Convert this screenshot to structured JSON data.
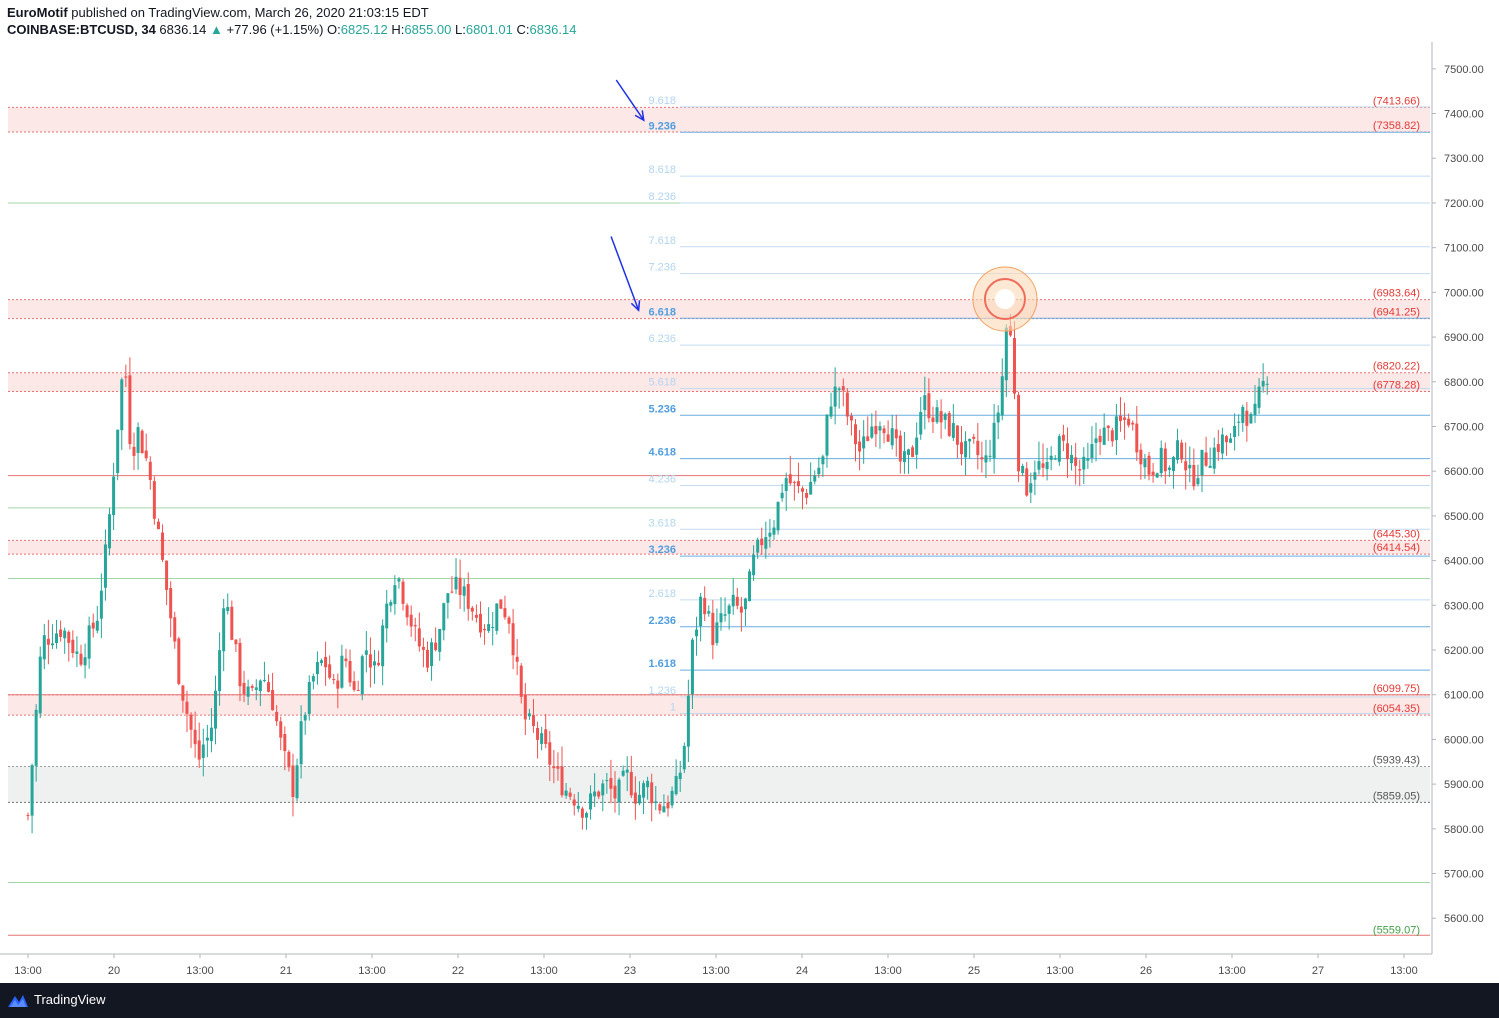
{
  "header": {
    "author": "EuroMotif",
    "published_text": " published on TradingView.com, March 26, 2020 21:03:15 EDT",
    "symbol": "COINBASE:BTCUSD, 34",
    "last": "6836.14",
    "change": "+77.96 (+1.15%)",
    "o_label": "O:",
    "o": "6825.12",
    "h_label": "H:",
    "h": "6855.00",
    "l_label": "L:",
    "l": "6801.01",
    "c_label": "C:",
    "c": "6836.14"
  },
  "footer": {
    "brand": "TradingView"
  },
  "colors": {
    "up": "#26a69a",
    "down": "#ef5350",
    "fib_light": "#b3d4f0",
    "fib_bold": "#4f9ee0",
    "red_line": "#e57373",
    "green_line": "#a5d6a7",
    "zone_red": "#fde8e8",
    "zone_gray": "#eef1f0",
    "arrow": "#1e32e6",
    "circle": "#f5a25d"
  },
  "chart_data": {
    "type": "candlestick",
    "symbol": "COINBASE:BTCUSD",
    "ylim": [
      5520,
      7560
    ],
    "y_ticks": [
      7500,
      7400,
      7300,
      7200,
      7100,
      7000,
      6900,
      6800,
      6700,
      6600,
      6500,
      6400,
      6300,
      6200,
      6100,
      6000,
      5900,
      5800,
      5700,
      5600
    ],
    "x_ticks": [
      {
        "label": "13:00",
        "pos": 0.0
      },
      {
        "label": "20",
        "pos": 0.5
      },
      {
        "label": "13:00",
        "pos": 1.0
      },
      {
        "label": "21",
        "pos": 1.5
      },
      {
        "label": "13:00",
        "pos": 2.0
      },
      {
        "label": "22",
        "pos": 2.5
      },
      {
        "label": "13:00",
        "pos": 3.0
      },
      {
        "label": "23",
        "pos": 3.5
      },
      {
        "label": "13:00",
        "pos": 4.0
      },
      {
        "label": "24",
        "pos": 4.5
      },
      {
        "label": "13:00",
        "pos": 5.0
      },
      {
        "label": "25",
        "pos": 5.5
      },
      {
        "label": "13:00",
        "pos": 6.0
      },
      {
        "label": "26",
        "pos": 6.5
      },
      {
        "label": "13:00",
        "pos": 7.0
      },
      {
        "label": "27",
        "pos": 7.5
      },
      {
        "label": "13:00",
        "pos": 8.0
      }
    ],
    "fib_levels": [
      {
        "label": "9.618",
        "value": 7415,
        "style": "light"
      },
      {
        "label": "9.236",
        "value": 7358,
        "style": "bold"
      },
      {
        "label": "8.618",
        "value": 7260,
        "style": "light"
      },
      {
        "label": "8.236",
        "value": 7200,
        "style": "light"
      },
      {
        "label": "7.618",
        "value": 7102,
        "style": "light"
      },
      {
        "label": "7.236",
        "value": 7042,
        "style": "light"
      },
      {
        "label": "6.618",
        "value": 6942,
        "style": "bold"
      },
      {
        "label": "6.236",
        "value": 6882,
        "style": "light"
      },
      {
        "label": "5.618",
        "value": 6785,
        "style": "light"
      },
      {
        "label": "5.236",
        "value": 6725,
        "style": "bold"
      },
      {
        "label": "4.618",
        "value": 6628,
        "style": "bold"
      },
      {
        "label": "4.236",
        "value": 6568,
        "style": "light"
      },
      {
        "label": "3.618",
        "value": 6470,
        "style": "light"
      },
      {
        "label": "3.236",
        "value": 6410,
        "style": "bold"
      },
      {
        "label": "2.618",
        "value": 6312,
        "style": "light"
      },
      {
        "label": "2.236",
        "value": 6252,
        "style": "bold"
      },
      {
        "label": "1.618",
        "value": 6155,
        "style": "bold"
      },
      {
        "label": "1.236",
        "value": 6095,
        "style": "light"
      },
      {
        "label": "1",
        "value": 6058,
        "style": "light"
      }
    ],
    "zones": [
      {
        "top": 7413.66,
        "bottom": 7358.82,
        "top_label": "(7413.66)",
        "bottom_label": "(7358.82)",
        "color": "red"
      },
      {
        "top": 6983.64,
        "bottom": 6941.25,
        "top_label": "(6983.64)",
        "bottom_label": "(6941.25)",
        "color": "red"
      },
      {
        "top": 6820.22,
        "bottom": 6778.28,
        "top_label": "(6820.22)",
        "bottom_label": "(6778.28)",
        "color": "red"
      },
      {
        "top": 6445.3,
        "bottom": 6414.54,
        "top_label": "(6445.30)",
        "bottom_label": "(6414.54)",
        "color": "red"
      },
      {
        "top": 6099.75,
        "bottom": 6054.35,
        "top_label": "(6099.75)",
        "bottom_label": "(6054.35)",
        "color": "red"
      },
      {
        "top": 5939.43,
        "bottom": 5859.05,
        "top_label": "(5939.43)",
        "bottom_label": "(5859.05)",
        "color": "gray"
      }
    ],
    "support_labels": [
      {
        "label": "(5559.07)",
        "value": 5559.07
      }
    ],
    "extra_lines": [
      {
        "value": 7200,
        "color": "green"
      },
      {
        "value": 6590,
        "color": "red"
      },
      {
        "value": 6518,
        "color": "green"
      },
      {
        "value": 6360,
        "color": "green"
      },
      {
        "value": 6100,
        "color": "red"
      },
      {
        "value": 5680,
        "color": "green"
      },
      {
        "value": 5562,
        "color": "red"
      }
    ],
    "circle_at": {
      "t": 5.68,
      "price": 6985
    },
    "arrows": [
      {
        "from": {
          "t": 3.42,
          "price": 7475
        },
        "to": {
          "t": 3.58,
          "price": 7385
        }
      },
      {
        "from": {
          "t": 3.39,
          "price": 7125
        },
        "to": {
          "t": 3.55,
          "price": 6960
        }
      }
    ],
    "anchor_points": [
      [
        0.0,
        5830
      ],
      [
        0.08,
        6220
      ],
      [
        0.2,
        6250
      ],
      [
        0.3,
        6180
      ],
      [
        0.4,
        6270
      ],
      [
        0.46,
        6440
      ],
      [
        0.52,
        6700
      ],
      [
        0.56,
        6860
      ],
      [
        0.6,
        6640
      ],
      [
        0.64,
        6690
      ],
      [
        0.7,
        6610
      ],
      [
        0.76,
        6450
      ],
      [
        0.82,
        6300
      ],
      [
        0.87,
        6160
      ],
      [
        0.93,
        6050
      ],
      [
        0.99,
        5950
      ],
      [
        1.02,
        5990
      ],
      [
        1.06,
        6010
      ],
      [
        1.1,
        6130
      ],
      [
        1.14,
        6330
      ],
      [
        1.18,
        6250
      ],
      [
        1.24,
        6120
      ],
      [
        1.3,
        6090
      ],
      [
        1.36,
        6150
      ],
      [
        1.42,
        6090
      ],
      [
        1.48,
        5970
      ],
      [
        1.54,
        5890
      ],
      [
        1.6,
        6050
      ],
      [
        1.66,
        6140
      ],
      [
        1.72,
        6180
      ],
      [
        1.78,
        6110
      ],
      [
        1.84,
        6190
      ],
      [
        1.9,
        6100
      ],
      [
        1.96,
        6210
      ],
      [
        2.02,
        6150
      ],
      [
        2.08,
        6290
      ],
      [
        2.14,
        6380
      ],
      [
        2.2,
        6300
      ],
      [
        2.26,
        6220
      ],
      [
        2.32,
        6180
      ],
      [
        2.38,
        6230
      ],
      [
        2.44,
        6330
      ],
      [
        2.5,
        6340
      ],
      [
        2.56,
        6310
      ],
      [
        2.62,
        6270
      ],
      [
        2.68,
        6250
      ],
      [
        2.74,
        6310
      ],
      [
        2.8,
        6270
      ],
      [
        2.84,
        6160
      ],
      [
        2.88,
        6050
      ],
      [
        2.94,
        6020
      ],
      [
        3.0,
        5980
      ],
      [
        3.06,
        5930
      ],
      [
        3.12,
        5890
      ],
      [
        3.18,
        5870
      ],
      [
        3.24,
        5840
      ],
      [
        3.3,
        5880
      ],
      [
        3.36,
        5900
      ],
      [
        3.42,
        5870
      ],
      [
        3.48,
        5920
      ],
      [
        3.54,
        5870
      ],
      [
        3.6,
        5900
      ],
      [
        3.66,
        5850
      ],
      [
        3.72,
        5860
      ],
      [
        3.78,
        5900
      ],
      [
        3.82,
        6000
      ],
      [
        3.86,
        6200
      ],
      [
        3.92,
        6330
      ],
      [
        3.98,
        6230
      ],
      [
        4.04,
        6270
      ],
      [
        4.1,
        6300
      ],
      [
        4.16,
        6280
      ],
      [
        4.22,
        6400
      ],
      [
        4.28,
        6460
      ],
      [
        4.34,
        6490
      ],
      [
        4.4,
        6590
      ],
      [
        4.46,
        6560
      ],
      [
        4.52,
        6550
      ],
      [
        4.58,
        6600
      ],
      [
        4.62,
        6620
      ],
      [
        4.66,
        6760
      ],
      [
        4.72,
        6790
      ],
      [
        4.78,
        6700
      ],
      [
        4.84,
        6640
      ],
      [
        4.9,
        6700
      ],
      [
        4.96,
        6720
      ],
      [
        5.02,
        6680
      ],
      [
        5.08,
        6610
      ],
      [
        5.14,
        6640
      ],
      [
        5.2,
        6760
      ],
      [
        5.26,
        6730
      ],
      [
        5.32,
        6710
      ],
      [
        5.38,
        6690
      ],
      [
        5.44,
        6640
      ],
      [
        5.5,
        6650
      ],
      [
        5.56,
        6610
      ],
      [
        5.62,
        6690
      ],
      [
        5.66,
        6780
      ],
      [
        5.68,
        6930
      ],
      [
        5.72,
        6890
      ],
      [
        5.76,
        6620
      ],
      [
        5.8,
        6560
      ],
      [
        5.86,
        6620
      ],
      [
        5.92,
        6590
      ],
      [
        5.98,
        6660
      ],
      [
        6.04,
        6650
      ],
      [
        6.1,
        6600
      ],
      [
        6.16,
        6610
      ],
      [
        6.22,
        6690
      ],
      [
        6.28,
        6680
      ],
      [
        6.34,
        6700
      ],
      [
        6.4,
        6720
      ],
      [
        6.46,
        6650
      ],
      [
        6.52,
        6600
      ],
      [
        6.58,
        6630
      ],
      [
        6.64,
        6600
      ],
      [
        6.7,
        6660
      ],
      [
        6.76,
        6580
      ],
      [
        6.82,
        6620
      ],
      [
        6.88,
        6640
      ],
      [
        6.94,
        6670
      ],
      [
        7.0,
        6660
      ],
      [
        7.06,
        6750
      ],
      [
        7.12,
        6700
      ],
      [
        7.16,
        6770
      ],
      [
        7.22,
        6836
      ]
    ]
  }
}
